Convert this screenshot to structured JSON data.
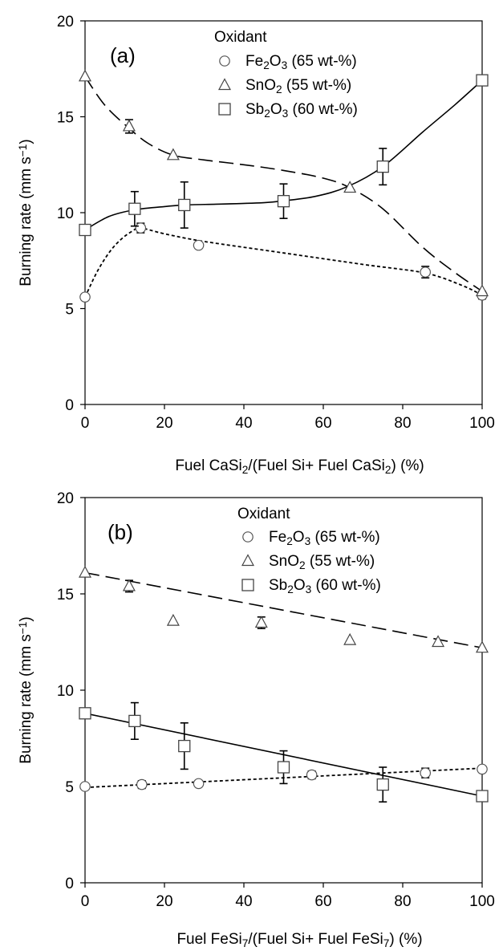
{
  "chart_data": [
    {
      "type": "scatter",
      "panel_label": "(a)",
      "xlabel": "Fuel CaSi₂/(Fuel Si+ Fuel CaSi₂) (%)",
      "ylabel": "Burning rate (mm s⁻¹)",
      "xlim": [
        0,
        100
      ],
      "ylim": [
        0,
        20
      ],
      "xticks": [
        0,
        20,
        40,
        60,
        80,
        100
      ],
      "yticks": [
        0,
        5,
        10,
        15,
        20
      ],
      "grid": false,
      "legend_title": "Oxidant",
      "legend_position": "top-center",
      "series": [
        {
          "name": "Fe₂O₃ (65 wt-%)",
          "marker": "circle",
          "line": "dotted-curve",
          "x": [
            0,
            14,
            28.6,
            85.7,
            100
          ],
          "y": [
            5.6,
            9.2,
            8.3,
            6.9,
            5.7
          ],
          "err": [
            0,
            0.25,
            0,
            0.3,
            0.2
          ],
          "fit_x": [
            0,
            3,
            6,
            9,
            12,
            14,
            20,
            30,
            50,
            70,
            85.7,
            95,
            100
          ],
          "fit_y": [
            5.6,
            6.9,
            7.9,
            8.6,
            9.05,
            9.2,
            8.9,
            8.5,
            7.9,
            7.3,
            6.85,
            6.2,
            5.7
          ]
        },
        {
          "name": "SnO₂  (55 wt-%)",
          "marker": "triangle",
          "line": "dashed-curve",
          "x": [
            0,
            11.1,
            22.2,
            66.7,
            100
          ],
          "y": [
            17.1,
            14.5,
            13.0,
            11.3,
            5.9
          ],
          "err": [
            0,
            0.35,
            0,
            0,
            0
          ],
          "fit_x": [
            0,
            5,
            11.1,
            16,
            22.2,
            30,
            40,
            50,
            60,
            66.7,
            75,
            85,
            93,
            100
          ],
          "fit_y": [
            17.1,
            15.6,
            14.4,
            13.6,
            13.0,
            12.75,
            12.5,
            12.2,
            11.8,
            11.3,
            10.2,
            8.2,
            6.9,
            5.9
          ]
        },
        {
          "name": "Sb₂O₃ (60 wt-%)",
          "marker": "square",
          "line": "solid-curve",
          "x": [
            0,
            12.5,
            25,
            50,
            75,
            100
          ],
          "y": [
            9.1,
            10.2,
            10.4,
            10.6,
            12.4,
            16.9
          ],
          "err": [
            0,
            0.9,
            1.2,
            0.9,
            0.95,
            0
          ],
          "fit_x": [
            0,
            6,
            12.5,
            20,
            25,
            35,
            45,
            50,
            58,
            66,
            75,
            85,
            93,
            100
          ],
          "fit_y": [
            9.1,
            9.8,
            10.15,
            10.32,
            10.4,
            10.45,
            10.52,
            10.62,
            10.85,
            11.35,
            12.4,
            14.2,
            15.6,
            16.9
          ]
        }
      ]
    },
    {
      "type": "scatter",
      "panel_label": "(b)",
      "xlabel": "Fuel FeSi₇/(Fuel Si+ Fuel FeSi₇) (%)",
      "ylabel": "Burning rate (mm s⁻¹)",
      "xlim": [
        0,
        100
      ],
      "ylim": [
        0,
        20
      ],
      "xticks": [
        0,
        20,
        40,
        60,
        80,
        100
      ],
      "yticks": [
        0,
        5,
        10,
        15,
        20
      ],
      "grid": false,
      "legend_title": "Oxidant",
      "legend_position": "top-center",
      "series": [
        {
          "name": "Fe₂O₃ (65 wt-%)",
          "marker": "circle",
          "line": "dotted-linear",
          "x": [
            0,
            14.3,
            28.6,
            57.1,
            85.7,
            100
          ],
          "y": [
            5.0,
            5.1,
            5.15,
            5.6,
            5.7,
            5.9
          ],
          "err": [
            0,
            0.2,
            0,
            0.2,
            0.25,
            0
          ],
          "fit_x": [
            0,
            100
          ],
          "fit_y": [
            4.95,
            5.95
          ]
        },
        {
          "name": "SnO₂  (55 wt-%)",
          "marker": "triangle",
          "line": "dashed-linear",
          "x": [
            0,
            11.1,
            22.2,
            44.4,
            66.7,
            88.9,
            100
          ],
          "y": [
            16.1,
            15.4,
            13.6,
            13.5,
            12.6,
            12.5,
            12.2
          ],
          "err": [
            0,
            0.3,
            0,
            0.3,
            0,
            0,
            0
          ],
          "fit_x": [
            0,
            100
          ],
          "fit_y": [
            16.1,
            12.2
          ]
        },
        {
          "name": "Sb₂O₃ (60 wt-%)",
          "marker": "square",
          "line": "solid-linear",
          "x": [
            0,
            12.5,
            25,
            50,
            75,
            100
          ],
          "y": [
            8.8,
            8.4,
            7.1,
            6.0,
            5.1,
            4.5
          ],
          "err": [
            0,
            0.95,
            1.2,
            0.85,
            0.9,
            0
          ],
          "fit_x": [
            0,
            100
          ],
          "fit_y": [
            8.8,
            4.5
          ]
        }
      ]
    }
  ]
}
